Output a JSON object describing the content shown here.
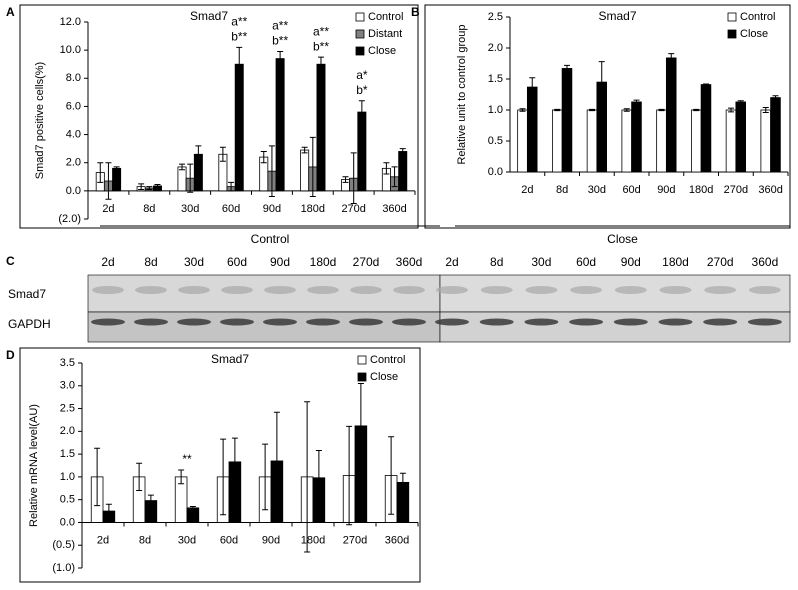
{
  "chart_data": [
    {
      "type": "bar",
      "panel": "A",
      "title": "Smad7",
      "y_label": "Smad7 positive cells(%)",
      "categories": [
        "2d",
        "8d",
        "30d",
        "60d",
        "90d",
        "180d",
        "270d",
        "360d"
      ],
      "series": [
        {
          "name": "Control",
          "color": "#ffffff",
          "values": [
            1.3,
            0.3,
            1.7,
            2.6,
            2.4,
            2.9,
            0.8,
            1.6
          ],
          "errors": [
            0.7,
            0.2,
            0.2,
            0.5,
            0.4,
            0.2,
            0.2,
            0.4
          ]
        },
        {
          "name": "Distant",
          "color": "#808080",
          "values": [
            0.7,
            0.2,
            0.9,
            0.3,
            1.4,
            1.7,
            0.9,
            1.0
          ],
          "errors": [
            1.3,
            0.1,
            1.0,
            0.3,
            1.8,
            2.1,
            1.8,
            0.7
          ]
        },
        {
          "name": "Close",
          "color": "#000000",
          "values": [
            1.6,
            0.35,
            2.6,
            9.0,
            9.4,
            9.0,
            5.6,
            2.8
          ],
          "errors": [
            0.1,
            0.1,
            0.6,
            1.2,
            0.5,
            0.5,
            0.8,
            0.2
          ]
        }
      ],
      "ylim": [
        -2,
        12
      ],
      "yticks": [
        {
          "value": -2,
          "label": "(2.0)"
        },
        {
          "value": 0,
          "label": "0.0"
        },
        {
          "value": 2,
          "label": "2.0"
        },
        {
          "value": 4,
          "label": "4.0"
        },
        {
          "value": 6,
          "label": "6.0"
        },
        {
          "value": 8,
          "label": "8.0"
        },
        {
          "value": 10,
          "label": "10.0"
        },
        {
          "value": 12,
          "label": "12.0"
        }
      ],
      "annotations": [
        {
          "category": "60d",
          "lines": [
            "a**",
            "b**"
          ]
        },
        {
          "category": "90d",
          "lines": [
            "a**",
            "b**"
          ]
        },
        {
          "category": "180d",
          "lines": [
            "a**",
            "b**"
          ]
        },
        {
          "category": "270d",
          "lines": [
            "a*",
            "b*"
          ]
        }
      ],
      "legend": "top-right",
      "grid": false
    },
    {
      "type": "bar",
      "panel": "B",
      "title": "Smad7",
      "y_label": "Relative unit to control group",
      "categories": [
        "2d",
        "8d",
        "30d",
        "60d",
        "90d",
        "180d",
        "270d",
        "360d"
      ],
      "series": [
        {
          "name": "Control",
          "color": "#ffffff",
          "values": [
            1.0,
            1.0,
            1.0,
            1.0,
            1.0,
            1.0,
            1.0,
            1.0
          ],
          "errors": [
            0.02,
            0.01,
            0.01,
            0.02,
            0.01,
            0.01,
            0.03,
            0.04
          ]
        },
        {
          "name": "Close",
          "color": "#000000",
          "values": [
            1.37,
            1.67,
            1.45,
            1.13,
            1.84,
            1.41,
            1.13,
            1.2
          ],
          "errors": [
            0.15,
            0.05,
            0.33,
            0.03,
            0.07,
            0.01,
            0.02,
            0.03
          ]
        }
      ],
      "ylim": [
        0,
        2.5
      ],
      "yticks": [
        {
          "value": 0,
          "label": "0.0"
        },
        {
          "value": 0.5,
          "label": "0.5"
        },
        {
          "value": 1,
          "label": "1.0"
        },
        {
          "value": 1.5,
          "label": "1.5"
        },
        {
          "value": 2,
          "label": "2.0"
        },
        2.5
      ],
      "annotations": [],
      "legend": "top-right",
      "grid": false
    },
    {
      "type": "bar",
      "panel": "D",
      "title": "Smad7",
      "y_label": "Relative mRNA level(AU)",
      "categories": [
        "2d",
        "8d",
        "30d",
        "60d",
        "90d",
        "180d",
        "270d",
        "360d"
      ],
      "series": [
        {
          "name": "Control",
          "color": "#ffffff",
          "values": [
            1.0,
            1.0,
            1.0,
            1.0,
            1.0,
            1.0,
            1.03,
            1.03
          ],
          "errors": [
            0.63,
            0.3,
            0.15,
            0.83,
            0.72,
            1.65,
            1.08,
            0.85
          ]
        },
        {
          "name": "Close",
          "color": "#000000",
          "values": [
            0.25,
            0.48,
            0.32,
            1.33,
            1.35,
            0.98,
            2.12,
            0.88
          ],
          "errors": [
            0.15,
            0.12,
            0.03,
            0.52,
            1.07,
            0.6,
            0.93,
            0.2
          ]
        }
      ],
      "ylim": [
        -1,
        3.5
      ],
      "yticks": [
        {
          "value": -1,
          "label": "(1.0)"
        },
        {
          "value": -0.5,
          "label": "(0.5)"
        },
        {
          "value": 0,
          "label": "0.0"
        },
        0.5,
        {
          "value": 1,
          "label": "1.0"
        },
        1.5,
        {
          "value": 2,
          "label": "2.0"
        },
        2.5,
        {
          "value": 3,
          "label": "3.0"
        },
        3.5
      ],
      "annotations": [
        {
          "category": "30d",
          "lines": [
            "**"
          ]
        }
      ],
      "legend": "top-right",
      "grid": false
    }
  ],
  "blot": {
    "panel": "C",
    "rows": [
      "Smad7",
      "GAPDH"
    ],
    "groups": [
      {
        "name": "Control",
        "lanes": [
          "2d",
          "8d",
          "30d",
          "60d",
          "90d",
          "180d",
          "270d",
          "360d"
        ]
      },
      {
        "name": "Close",
        "lanes": [
          "2d",
          "8d",
          "30d",
          "60d",
          "90d",
          "180d",
          "270d",
          "360d"
        ]
      }
    ]
  }
}
